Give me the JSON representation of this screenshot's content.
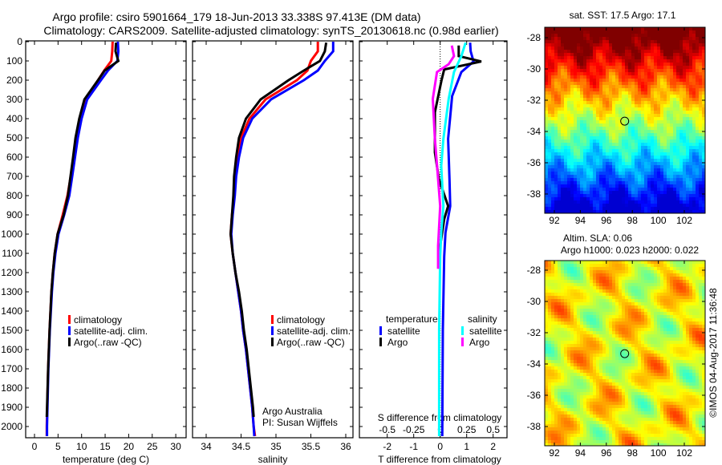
{
  "title": {
    "line1": "Argo profile: csiro 5901664_179 18-Jun-2013 33.338S 97.413E (DM data)",
    "line2": "Climatology: CARS2009. Satellite-adjusted climatology: synTS_20130618.nc (0.98d earlier)"
  },
  "depth_ticks": [
    0,
    100,
    200,
    300,
    400,
    500,
    600,
    700,
    800,
    900,
    1000,
    1100,
    1200,
    1300,
    1400,
    1500,
    1600,
    1700,
    1800,
    1900,
    2000
  ],
  "chart_data": [
    {
      "type": "line",
      "title": "temperature profile",
      "xlabel": "temperature (deg C)",
      "ylabel": "depth",
      "xlim": [
        -2,
        32
      ],
      "ylim": [
        2060,
        0
      ],
      "xticks": [
        "0",
        "5",
        "10",
        "15",
        "20",
        "25",
        "30"
      ],
      "xtick_values": [
        0,
        5,
        10,
        15,
        20,
        25,
        30
      ],
      "legend": [
        "climatology",
        "satellite-adj. clim.",
        "Argo(..raw -QC)"
      ],
      "series": [
        {
          "name": "climatology",
          "color": "#ff0000",
          "points": [
            [
              0,
              16.6
            ],
            [
              50,
              16.5
            ],
            [
              100,
              16.3
            ],
            [
              150,
              14.8
            ],
            [
              200,
              13.5
            ],
            [
              300,
              10.8
            ],
            [
              400,
              9.7
            ],
            [
              500,
              8.9
            ],
            [
              600,
              8.3
            ],
            [
              700,
              7.7
            ],
            [
              800,
              7.0
            ],
            [
              900,
              6.0
            ],
            [
              1000,
              4.9
            ],
            [
              1100,
              4.3
            ],
            [
              1200,
              3.9
            ],
            [
              1300,
              3.6
            ],
            [
              1500,
              3.2
            ],
            [
              1700,
              2.9
            ],
            [
              2000,
              2.6
            ],
            [
              2050,
              2.6
            ]
          ]
        },
        {
          "name": "satellite-adj. clim.",
          "color": "#0000ff",
          "points": [
            [
              0,
              17.7
            ],
            [
              50,
              17.8
            ],
            [
              100,
              17.6
            ],
            [
              150,
              15.6
            ],
            [
              200,
              14.1
            ],
            [
              300,
              11.2
            ],
            [
              400,
              10.0
            ],
            [
              500,
              9.2
            ],
            [
              600,
              8.6
            ],
            [
              700,
              8.0
            ],
            [
              800,
              7.4
            ],
            [
              900,
              6.3
            ],
            [
              1000,
              5.1
            ],
            [
              1100,
              4.45
            ],
            [
              1200,
              4.0
            ],
            [
              1300,
              3.7
            ],
            [
              1500,
              3.25
            ],
            [
              1700,
              2.95
            ],
            [
              2000,
              2.65
            ],
            [
              2050,
              2.65
            ]
          ]
        },
        {
          "name": "Argo(..raw -QC)",
          "color": "#000000",
          "points": [
            [
              5,
              17.3
            ],
            [
              50,
              17.2
            ],
            [
              100,
              17.8
            ],
            [
              150,
              14.9
            ],
            [
              200,
              13.5
            ],
            [
              300,
              10.6
            ],
            [
              400,
              9.5
            ],
            [
              500,
              8.7
            ],
            [
              600,
              8.2
            ],
            [
              700,
              7.65
            ],
            [
              800,
              7.1
            ],
            [
              900,
              6.2
            ],
            [
              1000,
              4.9
            ],
            [
              1100,
              4.3
            ],
            [
              1200,
              3.9
            ],
            [
              1300,
              3.6
            ],
            [
              1500,
              3.2
            ],
            [
              1700,
              2.9
            ],
            [
              1950,
              2.6
            ]
          ]
        }
      ]
    },
    {
      "type": "line",
      "title": "salinity profile",
      "xlabel": "salinity",
      "xlim": [
        33.8,
        36.1
      ],
      "ylim": [
        2060,
        0
      ],
      "xticks": [
        "34",
        "34.5",
        "35",
        "35.5",
        "36"
      ],
      "xtick_values": [
        34,
        34.5,
        35,
        35.5,
        36
      ],
      "legend": [
        "climatology",
        "satellite-adj. clim.",
        "Argo(..raw -QC)"
      ],
      "annotation": [
        "Argo Australia",
        "PI: Susan Wijffels"
      ],
      "series": [
        {
          "name": "climatology",
          "color": "#ff0000",
          "points": [
            [
              0,
              35.6
            ],
            [
              50,
              35.6
            ],
            [
              100,
              35.5
            ],
            [
              150,
              35.45
            ],
            [
              200,
              35.3
            ],
            [
              300,
              34.85
            ],
            [
              400,
              34.62
            ],
            [
              500,
              34.5
            ],
            [
              600,
              34.45
            ],
            [
              700,
              34.42
            ],
            [
              800,
              34.4
            ],
            [
              900,
              34.37
            ],
            [
              1000,
              34.35
            ],
            [
              1100,
              34.38
            ],
            [
              1200,
              34.42
            ],
            [
              1300,
              34.46
            ],
            [
              1400,
              34.5
            ],
            [
              1500,
              34.53
            ],
            [
              1600,
              34.57
            ],
            [
              1700,
              34.6
            ],
            [
              1800,
              34.63
            ],
            [
              1900,
              34.66
            ],
            [
              2000,
              34.68
            ],
            [
              2050,
              34.7
            ]
          ]
        },
        {
          "name": "satellite-adj. clim.",
          "color": "#0000ff",
          "points": [
            [
              0,
              35.82
            ],
            [
              50,
              35.82
            ],
            [
              100,
              35.7
            ],
            [
              150,
              35.6
            ],
            [
              200,
              35.4
            ],
            [
              300,
              34.93
            ],
            [
              400,
              34.66
            ],
            [
              500,
              34.53
            ],
            [
              600,
              34.47
            ],
            [
              700,
              34.43
            ],
            [
              800,
              34.41
            ],
            [
              900,
              34.38
            ],
            [
              1000,
              34.36
            ],
            [
              1100,
              34.38
            ],
            [
              1200,
              34.42
            ],
            [
              1300,
              34.46
            ],
            [
              1400,
              34.5
            ],
            [
              1500,
              34.53
            ],
            [
              1600,
              34.57
            ],
            [
              1700,
              34.6
            ],
            [
              1800,
              34.63
            ],
            [
              1900,
              34.66
            ],
            [
              2000,
              34.68
            ],
            [
              2050,
              34.69
            ]
          ]
        },
        {
          "name": "Argo(..raw -QC)",
          "color": "#000000",
          "points": [
            [
              5,
              35.72
            ],
            [
              50,
              35.7
            ],
            [
              100,
              35.63
            ],
            [
              150,
              35.4
            ],
            [
              200,
              35.18
            ],
            [
              300,
              34.78
            ],
            [
              400,
              34.57
            ],
            [
              500,
              34.47
            ],
            [
              600,
              34.43
            ],
            [
              700,
              34.4
            ],
            [
              800,
              34.39
            ],
            [
              900,
              34.37
            ],
            [
              1000,
              34.35
            ],
            [
              1100,
              34.38
            ],
            [
              1200,
              34.42
            ],
            [
              1300,
              34.47
            ],
            [
              1400,
              34.51
            ],
            [
              1500,
              34.54
            ],
            [
              1600,
              34.58
            ],
            [
              1700,
              34.61
            ],
            [
              1800,
              34.64
            ],
            [
              1900,
              34.67
            ],
            [
              1950,
              34.68
            ]
          ]
        }
      ]
    },
    {
      "type": "line",
      "title": "difference from climatology",
      "xlabel": "T difference from climatology",
      "x2label": "S difference from climatology",
      "xlim": [
        -3,
        2.6
      ],
      "ylim": [
        2060,
        0
      ],
      "xticks": [
        "-2",
        "-1",
        "0",
        "1",
        "2"
      ],
      "xtick_values": [
        -2,
        -1,
        0,
        1,
        2
      ],
      "x2ticks": [
        "-0.5",
        "-0.25",
        "0",
        "0.25",
        "0.5"
      ],
      "x2tick_values": [
        -0.5,
        -0.25,
        0,
        0.25,
        0.5
      ],
      "legend_groups": [
        {
          "title": "temperature",
          "items": [
            "satellite",
            "Argo"
          ],
          "colors": [
            "#0000ff",
            "#000000"
          ]
        },
        {
          "title": "salinity",
          "items": [
            "satellite",
            "Argo"
          ],
          "colors": [
            "#00ffff",
            "#ff00ff"
          ]
        }
      ],
      "series": [
        {
          "name": "temperature satellite",
          "axis": "T",
          "color": "#0000ff",
          "points": [
            [
              5,
              1.13
            ],
            [
              50,
              1.15
            ],
            [
              103,
              1.26
            ],
            [
              158,
              0.8
            ],
            [
              283,
              0.45
            ],
            [
              505,
              0.3
            ],
            [
              714,
              0.35
            ],
            [
              854,
              0.38
            ],
            [
              992,
              0.2
            ],
            [
              1117,
              0.15
            ],
            [
              1500,
              0.1
            ],
            [
              2050,
              0.08
            ]
          ]
        },
        {
          "name": "temperature Argo",
          "axis": "T",
          "color": "#000000",
          "points": [
            [
              20,
              0.7
            ],
            [
              75,
              0.7
            ],
            [
              103,
              1.55
            ],
            [
              144,
              0.15
            ],
            [
              200,
              0.05
            ],
            [
              367,
              -0.2
            ],
            [
              575,
              -0.2
            ],
            [
              714,
              -0.05
            ],
            [
              854,
              0.3
            ],
            [
              922,
              0.15
            ],
            [
              1061,
              0.0
            ],
            [
              1117,
              -0.02
            ],
            [
              1180,
              -0.02
            ]
          ]
        },
        {
          "name": "salinity satellite",
          "axis": "S",
          "color": "#00ffff",
          "points": [
            [
              5,
              0.24
            ],
            [
              75,
              0.2
            ],
            [
              158,
              0.13
            ],
            [
              297,
              0.08
            ],
            [
              505,
              0.03
            ],
            [
              645,
              0.01
            ],
            [
              854,
              0.03
            ],
            [
              992,
              0.01
            ],
            [
              1117,
              0.0
            ],
            [
              1500,
              -0.01
            ],
            [
              2050,
              -0.01
            ]
          ]
        },
        {
          "name": "salinity Argo",
          "axis": "S",
          "color": "#ff00ff",
          "points": [
            [
              20,
              0.11
            ],
            [
              75,
              0.13
            ],
            [
              117,
              0.08
            ],
            [
              158,
              -0.03
            ],
            [
              297,
              -0.07
            ],
            [
              505,
              -0.05
            ],
            [
              714,
              -0.02
            ],
            [
              854,
              0.0
            ],
            [
              1061,
              -0.02
            ],
            [
              1180,
              -0.02
            ]
          ]
        }
      ]
    }
  ],
  "maps": [
    {
      "title": "sat. SST: 17.5 Argo: 17.1",
      "lon_ticks": [
        "92",
        "94",
        "96",
        "98",
        "100",
        "102"
      ],
      "lat_ticks": [
        "-28",
        "-30",
        "-32",
        "-34",
        "-36",
        "-38"
      ],
      "marker": {
        "lon": 97.413,
        "lat": -33.338
      }
    },
    {
      "title": "Altim. SLA: 0.06",
      "subtitle": "Argo h1000: 0.023 h2000: 0.022",
      "lon_ticks": [
        "92",
        "94",
        "96",
        "98",
        "100",
        "102"
      ],
      "lat_ticks": [
        "-28",
        "-30",
        "-32",
        "-34",
        "-36",
        "-38"
      ],
      "marker": {
        "lon": 97.413,
        "lat": -33.338
      }
    }
  ],
  "copyright": "©IMOS 04-Aug-2017 11:36:48"
}
